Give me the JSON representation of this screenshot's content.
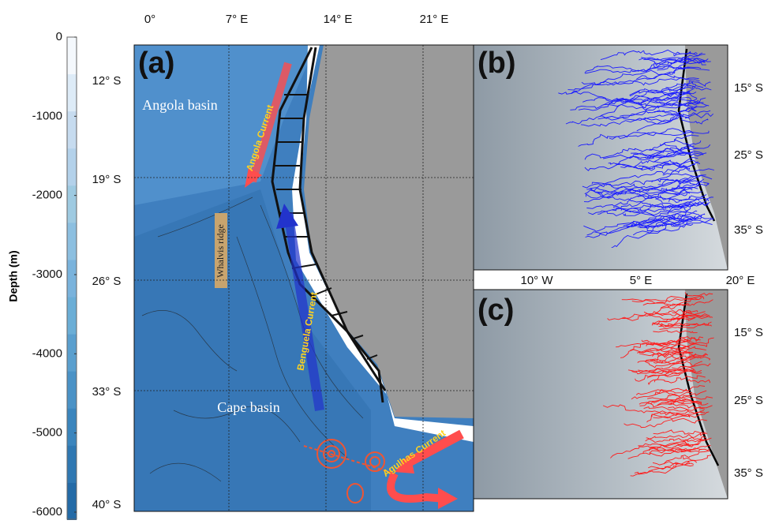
{
  "colorbar": {
    "label": "Depth (m)",
    "lim": [
      -6100,
      0
    ],
    "ticks": [
      0,
      -1000,
      -2000,
      -3000,
      -4000,
      -5000,
      -6000
    ]
  },
  "panel_a": {
    "label": "(a)",
    "lon_labels": [
      "0°",
      "7° E",
      "14° E",
      "21° E"
    ],
    "lat_labels": [
      "12° S",
      "19° S",
      "26° S",
      "33° S",
      "40° S"
    ],
    "annotations": {
      "angola_basin": "Angola basin",
      "angola_current": "Angola Current",
      "walvis_ridge": "Whalvis ridge",
      "benguela_current": "Benguela Current",
      "cape_basin": "Cape basin",
      "agulhas_current": "Agulhas Current"
    }
  },
  "panel_b": {
    "label": "(b)",
    "lat_labels": [
      "15° S",
      "25° S",
      "35° S"
    ]
  },
  "panel_c": {
    "label": "(c)",
    "lon_labels": [
      "10° W",
      "5° E",
      "20° E"
    ],
    "lat_labels": [
      "15° S",
      "25° S",
      "35° S"
    ]
  }
}
